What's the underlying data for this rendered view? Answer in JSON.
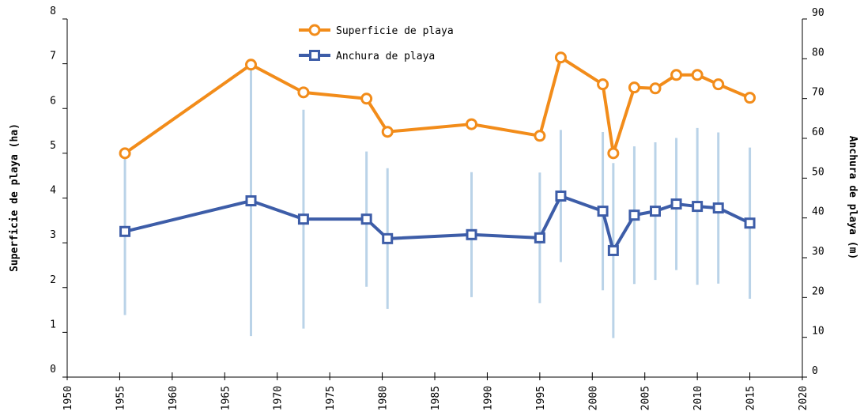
{
  "chart_data": {
    "type": "line",
    "xlabel": null,
    "ylabel": "Superficie de playa (ha)",
    "y2label": "Anchura de playa (m)",
    "xlim": [
      1950,
      2020
    ],
    "xticks": [
      1950,
      1955,
      1960,
      1965,
      1970,
      1975,
      1980,
      1985,
      1990,
      1995,
      2000,
      2005,
      2010,
      2015,
      2020
    ],
    "ylim": [
      0,
      8
    ],
    "yticks": [
      0,
      1,
      2,
      3,
      4,
      5,
      6,
      7,
      8
    ],
    "y2lim": [
      0,
      90
    ],
    "y2ticks": [
      0,
      10,
      20,
      30,
      40,
      50,
      60,
      70,
      80,
      90
    ],
    "x": [
      1955.5,
      1967.5,
      1972.5,
      1978.5,
      1980.5,
      1988.5,
      1995,
      1997,
      2001,
      2002,
      2004,
      2006,
      2008,
      2010,
      2012,
      2015
    ],
    "series": [
      {
        "name": "Superficie de playa",
        "color": "#f28c1a",
        "marker": "circle",
        "values": [
          5.0,
          6.98,
          6.36,
          6.22,
          5.48,
          5.65,
          5.39,
          7.14,
          6.54,
          5.0,
          6.47,
          6.45,
          6.75,
          6.75,
          6.54,
          6.24
        ]
      },
      {
        "name": "Anchura de playa",
        "color": "#3d5da8",
        "marker": "square",
        "axis": "y2",
        "error_color": "#bad3e8",
        "values": [
          36.6,
          44.3,
          39.7,
          39.7,
          34.8,
          35.8,
          35.0,
          45.5,
          41.7,
          31.8,
          40.7,
          41.7,
          43.5,
          42.9,
          42.5,
          38.7
        ],
        "errors": [
          21,
          34,
          27.5,
          17,
          17.7,
          15.7,
          16.4,
          16.6,
          19.9,
          22,
          17.3,
          17.3,
          16.6,
          19.7,
          19,
          19
        ]
      }
    ]
  }
}
